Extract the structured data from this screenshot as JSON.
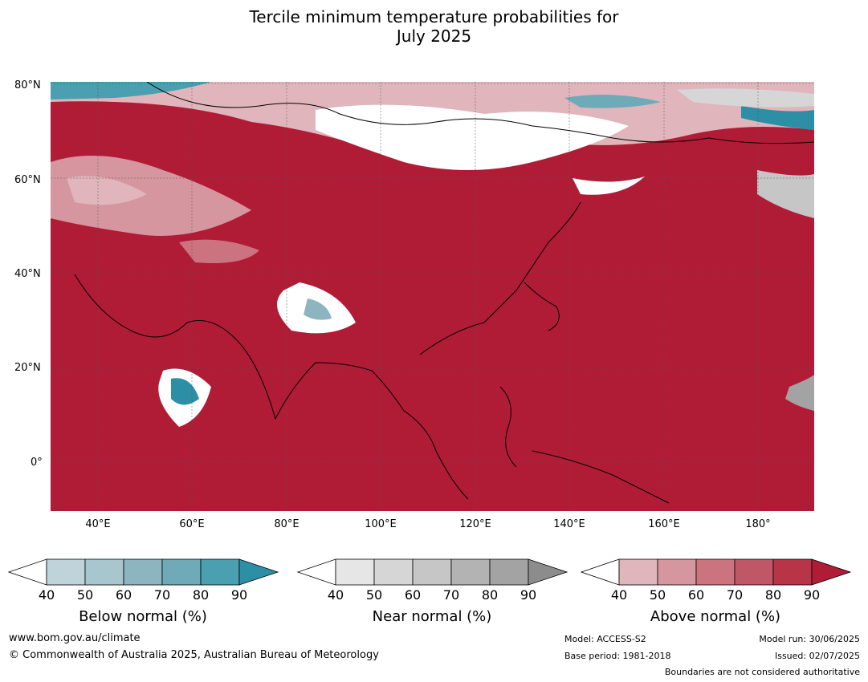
{
  "title": {
    "line1": "Tercile minimum temperature probabilities for",
    "line2": "July 2025"
  },
  "map": {
    "lat_labels": [
      "80°N",
      "60°N",
      "40°N",
      "20°N",
      "0°"
    ],
    "lon_labels": [
      "40°E",
      "60°E",
      "80°E",
      "100°E",
      "120°E",
      "140°E",
      "160°E",
      "180°"
    ],
    "dominant_category": "Above normal"
  },
  "legends": [
    {
      "label": "Below normal (%)",
      "ticks": [
        "40",
        "50",
        "60",
        "70",
        "80",
        "90"
      ],
      "colors": [
        "#bfd3da",
        "#a7c6cd",
        "#8cb5c0",
        "#6eaab7",
        "#4a9fb0",
        "#2c8fa6"
      ]
    },
    {
      "label": "Near normal (%)",
      "ticks": [
        "40",
        "50",
        "60",
        "70",
        "80",
        "90"
      ],
      "colors": [
        "#e6e6e6",
        "#d6d6d6",
        "#c6c6c6",
        "#b3b3b3",
        "#a3a3a3",
        "#8c8c8c"
      ]
    },
    {
      "label": "Above normal (%)",
      "ticks": [
        "40",
        "50",
        "60",
        "70",
        "80",
        "90"
      ],
      "colors": [
        "#e0b6bc",
        "#d6969f",
        "#cb737f",
        "#c05766",
        "#b83447",
        "#b01c36"
      ]
    }
  ],
  "footer": {
    "url": "www.bom.gov.au/climate",
    "copyright": "© Commonwealth of Australia 2025, Australian Bureau of Meteorology",
    "model": "Model: ACCESS-S2",
    "base_period": "Base period: 1981-2018",
    "model_run": "Model run: 30/06/2025",
    "issued": "Issued: 02/07/2025",
    "disclaimer": "Boundaries are not considered authoritative"
  }
}
